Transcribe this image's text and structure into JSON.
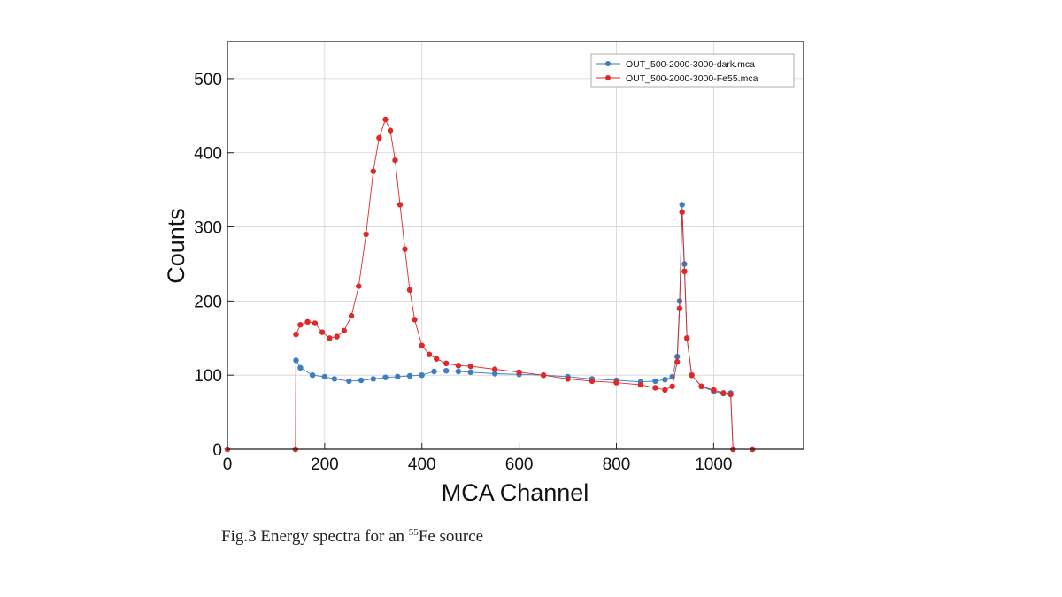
{
  "chart_data": {
    "type": "scatter",
    "xlabel": "MCA Channel",
    "ylabel": "Counts",
    "xlim": [
      0,
      1185
    ],
    "ylim": [
      0,
      550
    ],
    "xticks": [
      0,
      200,
      400,
      600,
      800,
      1000
    ],
    "yticks": [
      0,
      100,
      200,
      300,
      400,
      500
    ],
    "grid": true,
    "legend_position": "top-right",
    "series": [
      {
        "name": "OUT_500-2000-3000-dark.mca",
        "color": "#3a7fc0",
        "points": [
          [
            0,
            0
          ],
          [
            140,
            0
          ],
          [
            141,
            120
          ],
          [
            150,
            110
          ],
          [
            175,
            100
          ],
          [
            200,
            98
          ],
          [
            220,
            95
          ],
          [
            250,
            92
          ],
          [
            275,
            93
          ],
          [
            300,
            95
          ],
          [
            325,
            97
          ],
          [
            350,
            98
          ],
          [
            375,
            99
          ],
          [
            400,
            100
          ],
          [
            425,
            105
          ],
          [
            450,
            106
          ],
          [
            475,
            105
          ],
          [
            500,
            104
          ],
          [
            550,
            102
          ],
          [
            600,
            101
          ],
          [
            650,
            100
          ],
          [
            700,
            98
          ],
          [
            750,
            95
          ],
          [
            800,
            93
          ],
          [
            850,
            91
          ],
          [
            880,
            92
          ],
          [
            900,
            94
          ],
          [
            915,
            98
          ],
          [
            925,
            125
          ],
          [
            930,
            200
          ],
          [
            935,
            330
          ],
          [
            940,
            250
          ],
          [
            945,
            150
          ],
          [
            955,
            100
          ],
          [
            975,
            85
          ],
          [
            1000,
            78
          ],
          [
            1020,
            75
          ],
          [
            1035,
            76
          ],
          [
            1040,
            0
          ],
          [
            1080,
            0
          ]
        ]
      },
      {
        "name": "OUT_500-2000-3000-Fe55.mca",
        "color": "#e02828",
        "points": [
          [
            0,
            0
          ],
          [
            140,
            0
          ],
          [
            141,
            155
          ],
          [
            150,
            168
          ],
          [
            165,
            172
          ],
          [
            180,
            170
          ],
          [
            195,
            158
          ],
          [
            210,
            150
          ],
          [
            225,
            152
          ],
          [
            240,
            160
          ],
          [
            255,
            180
          ],
          [
            270,
            220
          ],
          [
            285,
            290
          ],
          [
            300,
            375
          ],
          [
            312,
            420
          ],
          [
            325,
            445
          ],
          [
            335,
            430
          ],
          [
            345,
            390
          ],
          [
            355,
            330
          ],
          [
            365,
            270
          ],
          [
            375,
            215
          ],
          [
            385,
            175
          ],
          [
            400,
            140
          ],
          [
            415,
            128
          ],
          [
            430,
            122
          ],
          [
            450,
            116
          ],
          [
            475,
            113
          ],
          [
            500,
            112
          ],
          [
            550,
            108
          ],
          [
            600,
            104
          ],
          [
            650,
            100
          ],
          [
            700,
            95
          ],
          [
            750,
            92
          ],
          [
            800,
            90
          ],
          [
            850,
            87
          ],
          [
            880,
            83
          ],
          [
            900,
            80
          ],
          [
            915,
            85
          ],
          [
            925,
            118
          ],
          [
            930,
            190
          ],
          [
            935,
            320
          ],
          [
            940,
            240
          ],
          [
            945,
            150
          ],
          [
            955,
            100
          ],
          [
            975,
            85
          ],
          [
            1000,
            80
          ],
          [
            1020,
            76
          ],
          [
            1035,
            74
          ],
          [
            1040,
            0
          ],
          [
            1080,
            0
          ]
        ]
      }
    ]
  },
  "caption": {
    "prefix": "Fig.3 Energy spectra for an ",
    "superscript": "55",
    "suffix": "Fe source"
  }
}
